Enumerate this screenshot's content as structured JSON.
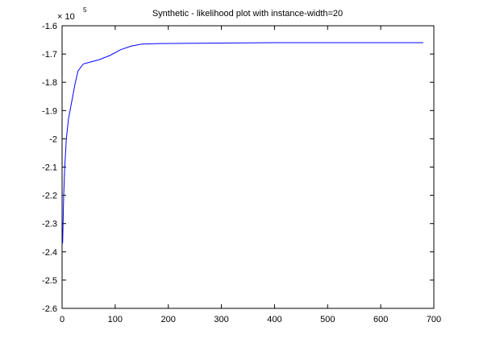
{
  "chart_data": {
    "type": "line",
    "title": "Synthetic - likelihood plot with instance-width=20",
    "y_multiplier": {
      "base": "× 10",
      "exponent": "5"
    },
    "x": [
      1,
      3,
      5,
      8,
      12,
      18,
      25,
      30,
      40,
      50,
      70,
      90,
      110,
      130,
      150,
      180,
      250,
      400,
      680
    ],
    "values": [
      -2.37,
      -2.2,
      -2.1,
      -2.0,
      -1.93,
      -1.87,
      -1.8,
      -1.76,
      -1.735,
      -1.73,
      -1.72,
      -1.705,
      -1.685,
      -1.672,
      -1.665,
      -1.663,
      -1.662,
      -1.66,
      -1.66
    ],
    "color": "#0000ff",
    "xlim": [
      0,
      700
    ],
    "xticks": [
      0,
      100,
      200,
      300,
      400,
      500,
      600,
      700
    ],
    "ylim": [
      -2.6,
      -1.6
    ],
    "yticks": [
      -2.6,
      -2.5,
      -2.4,
      -2.3,
      -2.2,
      -2.1,
      -2,
      -1.9,
      -1.8,
      -1.7,
      -1.6
    ],
    "grid": false
  }
}
